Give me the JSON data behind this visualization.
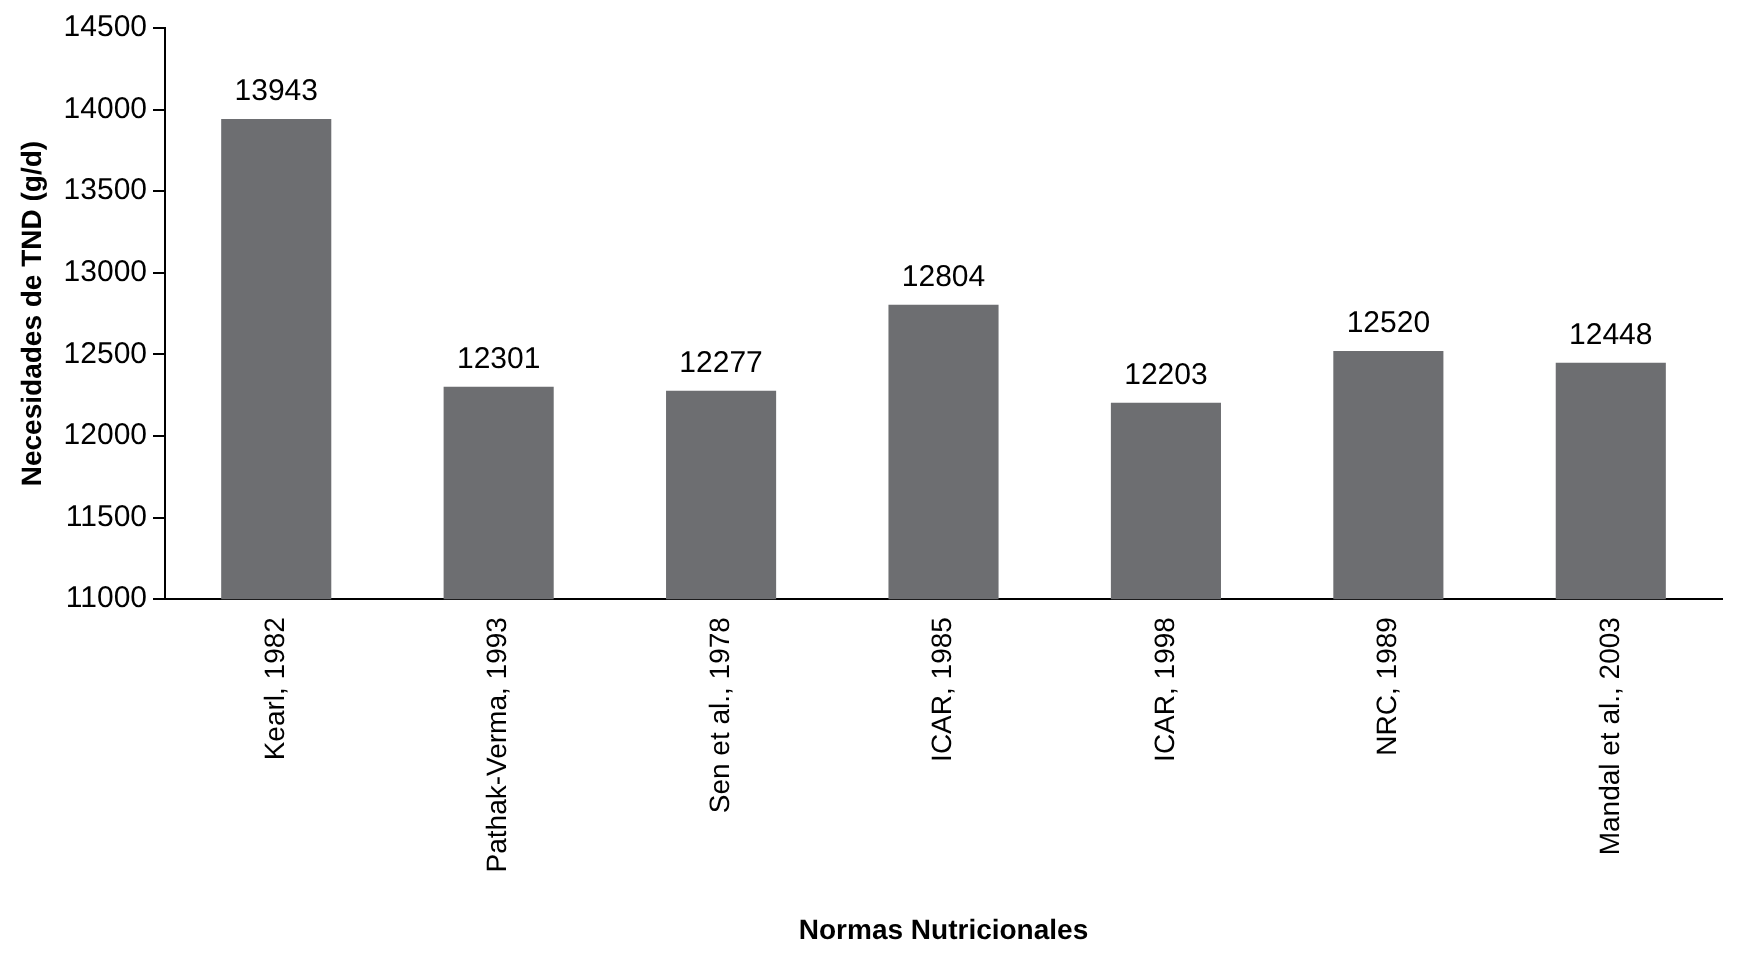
{
  "chart_data": {
    "type": "bar",
    "xlabel": "Normas Nutricionales",
    "ylabel": "Necesidades de TND (g/d)",
    "categories": [
      "Kearl, 1982",
      "Pathak-Verma, 1993",
      "Sen et al., 1978",
      "ICAR, 1985",
      "ICAR, 1998",
      "NRC, 1989",
      "Mandal et al., 2003"
    ],
    "values": [
      13943,
      12301,
      12277,
      12804,
      12203,
      12520,
      12448
    ],
    "color": "#6d6e71",
    "ylim": [
      11000,
      14500
    ],
    "yticks": [
      11000,
      11500,
      12000,
      12500,
      13000,
      13500,
      14000,
      14500
    ],
    "grid": false,
    "legend": false,
    "data_labels": true
  }
}
